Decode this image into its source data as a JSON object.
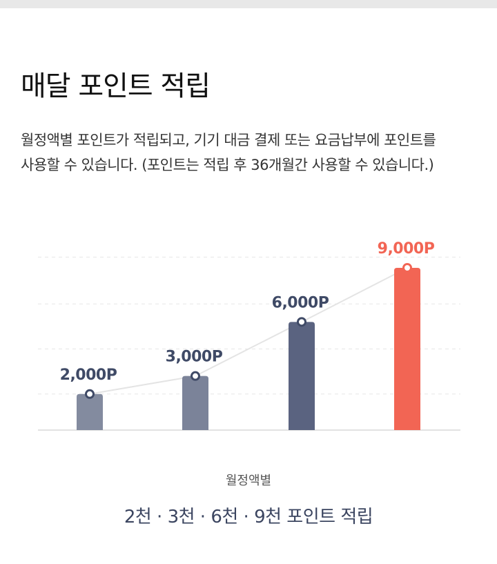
{
  "header": {
    "title": "매달 포인트 적립",
    "description_lines": [
      "월정액별 포인트가 적립되고, 기기 대금 결제 또는 요금납부에 포인트를",
      "사용할 수 있습니다. (포인트는 적립 후 36개월간 사용할 수 있습니다.)"
    ]
  },
  "chart_data": {
    "type": "bar",
    "values": [
      2000,
      3000,
      6000,
      9000
    ],
    "data_labels": [
      "2,000P",
      "3,000P",
      "6,000P",
      "9,000P"
    ],
    "bar_colors": [
      "#838b9f",
      "#7b8399",
      "#5a6380",
      "#f26554"
    ],
    "label_colors": [
      "#3f4a66",
      "#3f4a66",
      "#3f4a66",
      "#f26554"
    ],
    "xlabel": "월정액별",
    "ylim": [
      0,
      10000
    ],
    "grid": true,
    "trend_line": true
  },
  "footer": {
    "caption": "월정액별",
    "summary": "2천 · 3천 · 6천 · 9천 포인트 적립"
  }
}
